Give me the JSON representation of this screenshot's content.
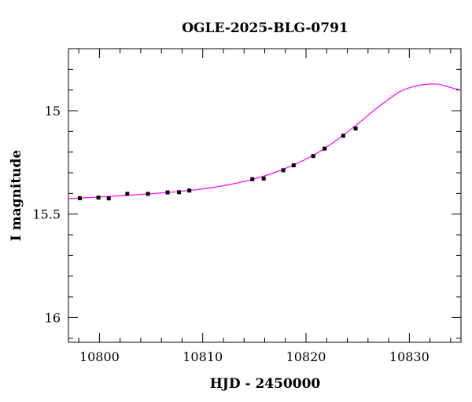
{
  "chart_data": {
    "type": "scatter",
    "title": "OGLE-2025-BLG-0791",
    "xlabel": "HJD - 2450000",
    "ylabel": "I magnitude",
    "xlim": [
      10797,
      10835
    ],
    "ylim": [
      16.12,
      14.7
    ],
    "y_inverted": true,
    "grid": false,
    "legend": "none",
    "x_ticks": [
      {
        "value": 10800,
        "label": "10800"
      },
      {
        "value": 10810,
        "label": "10810"
      },
      {
        "value": 10820,
        "label": "10820"
      },
      {
        "value": 10830,
        "label": "10830"
      }
    ],
    "y_ticks": [
      {
        "value": 15,
        "label": "15"
      },
      {
        "value": 15.5,
        "label": "15.5"
      },
      {
        "value": 16,
        "label": "16"
      }
    ],
    "series": [
      {
        "kind": "points",
        "color": "#000000",
        "x": [
          10798.1,
          10799.9,
          10800.9,
          10802.7,
          10804.7,
          10806.6,
          10807.7,
          10808.7,
          10814.8,
          10815.9,
          10817.8,
          10818.8,
          10820.7,
          10821.8,
          10823.6,
          10824.8
        ],
        "y": [
          15.423,
          15.42,
          15.424,
          15.402,
          15.402,
          15.395,
          15.394,
          15.386,
          15.331,
          15.328,
          15.288,
          15.264,
          15.219,
          15.183,
          15.121,
          15.086
        ],
        "yerr": [
          0.006,
          0.006,
          0.006,
          0.006,
          0.006,
          0.006,
          0.006,
          0.006,
          0.006,
          0.006,
          0.006,
          0.006,
          0.006,
          0.006,
          0.006,
          0.006
        ]
      },
      {
        "kind": "model-curve",
        "color": "#ff00ff",
        "x": [
          10797,
          10799,
          10801,
          10803,
          10805,
          10807,
          10809,
          10811,
          10813,
          10815,
          10817,
          10819,
          10821,
          10823,
          10825,
          10827,
          10829,
          10830,
          10831,
          10832,
          10832.5,
          10833,
          10834,
          10835
        ],
        "y": [
          15.425,
          15.42,
          15.414,
          15.408,
          15.401,
          15.394,
          15.384,
          15.371,
          15.353,
          15.33,
          15.298,
          15.258,
          15.207,
          15.141,
          15.064,
          14.982,
          14.91,
          14.889,
          14.876,
          14.871,
          14.871,
          14.873,
          14.888,
          14.9
        ]
      }
    ]
  }
}
